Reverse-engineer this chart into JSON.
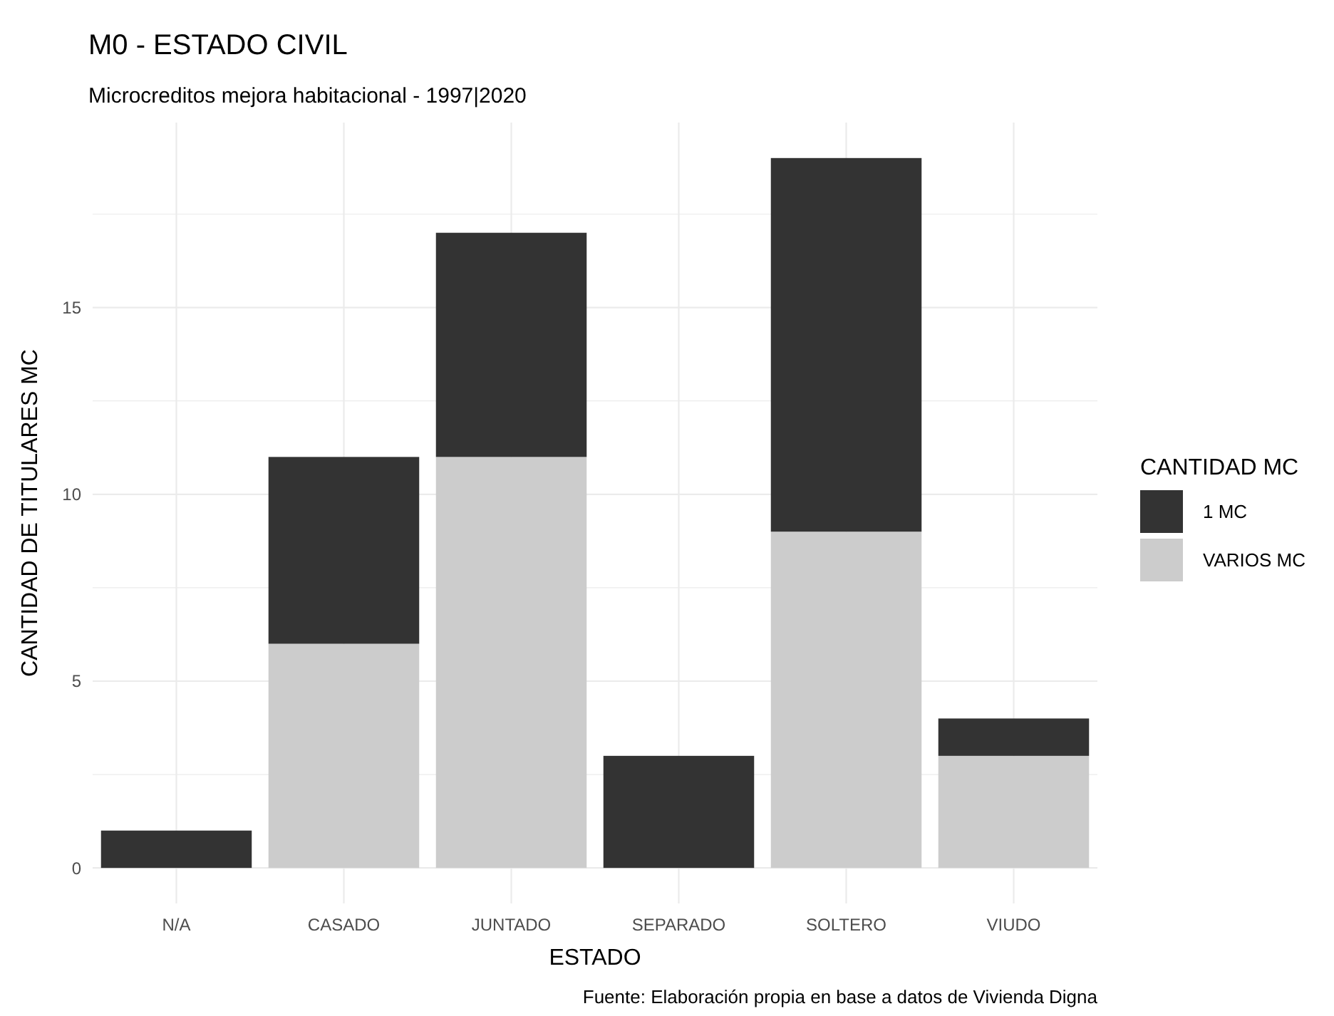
{
  "chart_data": {
    "type": "bar",
    "title": "M0 - ESTADO CIVIL",
    "subtitle": "Microcreditos mejora habitacional - 1997|2020",
    "xlabel": "ESTADO",
    "ylabel": "CANTIDAD DE TITULARES MC",
    "legend_title": "CANTIDAD MC",
    "annotations": [
      "Fuente: Elaboración propia en base a datos de Vivienda Digna"
    ],
    "categories": [
      "N/A",
      "CASADO",
      "JUNTADO",
      "SEPARADO",
      "SOLTERO",
      "VIUDO"
    ],
    "series": [
      {
        "name": "VARIOS MC",
        "color": "#cccccc",
        "values": [
          0,
          6,
          11,
          0,
          9,
          3
        ]
      },
      {
        "name": "1 MC",
        "color": "#333333",
        "values": [
          1,
          5,
          6,
          3,
          10,
          1
        ]
      }
    ],
    "stacked": true,
    "ylim": [
      -0.95,
      19.95
    ],
    "yticks": [
      0,
      {
        "value": 2.5,
        "label": null
      },
      5,
      {
        "value": 7.5,
        "label": null
      },
      10,
      {
        "value": 12.5,
        "label": null
      },
      15,
      {
        "value": 17.5,
        "label": null
      }
    ],
    "grid": true,
    "legend": "right"
  }
}
